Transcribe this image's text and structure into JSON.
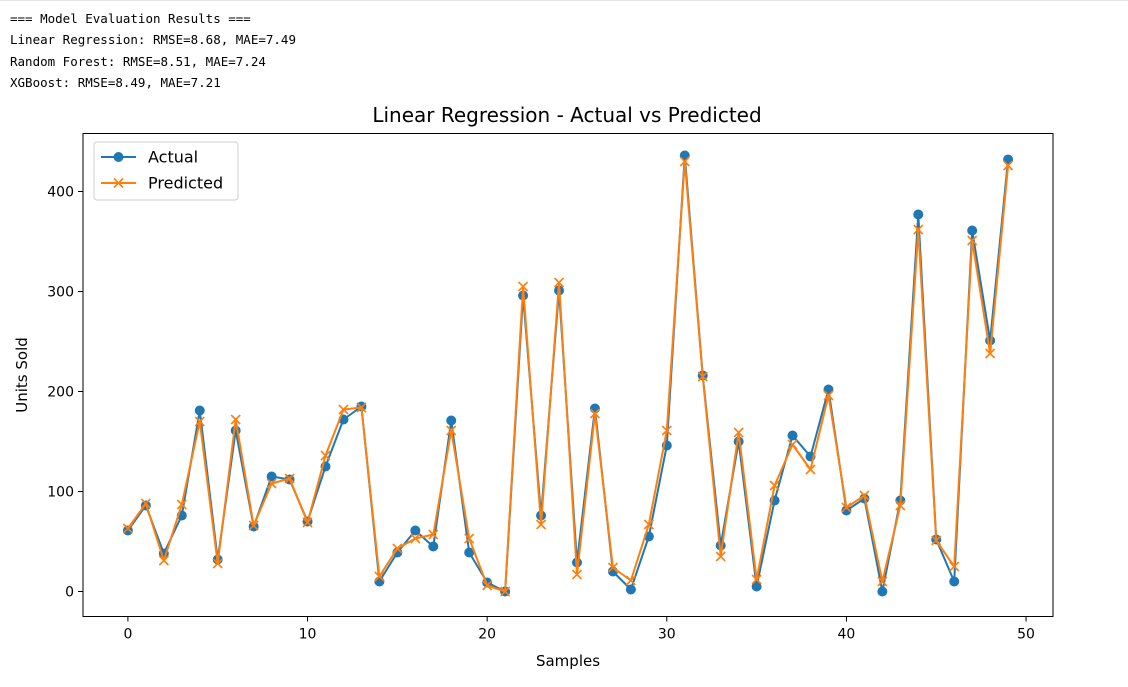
{
  "output": {
    "lines": [
      "=== Model Evaluation Results ===",
      "Linear Regression: RMSE=8.68, MAE=7.49",
      "Random Forest: RMSE=8.51, MAE=7.24",
      "XGBoost: RMSE=8.49, MAE=7.21"
    ]
  },
  "chart_data": {
    "type": "line",
    "title": "Linear Regression - Actual vs Predicted",
    "xlabel": "Samples",
    "ylabel": "Units Sold",
    "xlim": [
      -2.5,
      51.5
    ],
    "ylim": [
      -25,
      458
    ],
    "xticks": [
      0,
      10,
      20,
      30,
      40,
      50
    ],
    "yticks": [
      0,
      100,
      200,
      300,
      400
    ],
    "legend_position": "top-left",
    "grid": false,
    "x": [
      0,
      1,
      2,
      3,
      4,
      5,
      6,
      7,
      8,
      9,
      10,
      11,
      12,
      13,
      14,
      15,
      16,
      17,
      18,
      19,
      20,
      21,
      22,
      23,
      24,
      25,
      26,
      27,
      28,
      29,
      30,
      31,
      32,
      33,
      34,
      35,
      36,
      37,
      38,
      39,
      40,
      41,
      42,
      43,
      44,
      45,
      46,
      47,
      48,
      49
    ],
    "series": [
      {
        "name": "Actual",
        "color": "#1f77b4",
        "marker": "circle",
        "values": [
          61,
          86,
          38,
          76,
          181,
          32,
          161,
          65,
          115,
          112,
          70,
          125,
          172,
          185,
          10,
          39,
          61,
          45,
          171,
          39,
          9,
          0,
          296,
          76,
          301,
          29,
          183,
          20,
          2,
          55,
          146,
          436,
          216,
          46,
          150,
          5,
          91,
          156,
          135,
          202,
          81,
          93,
          0,
          91,
          377,
          52,
          10,
          361,
          251,
          432
        ]
      },
      {
        "name": "Predicted",
        "color": "#ff7f0e",
        "marker": "x",
        "values": [
          63,
          88,
          31,
          87,
          170,
          28,
          172,
          66,
          108,
          113,
          69,
          136,
          182,
          184,
          15,
          43,
          53,
          57,
          161,
          53,
          6,
          0,
          305,
          67,
          309,
          17,
          178,
          24,
          11,
          67,
          161,
          430,
          215,
          35,
          159,
          12,
          106,
          147,
          122,
          196,
          84,
          96,
          10,
          86,
          362,
          51,
          25,
          351,
          238,
          426
        ]
      }
    ]
  }
}
